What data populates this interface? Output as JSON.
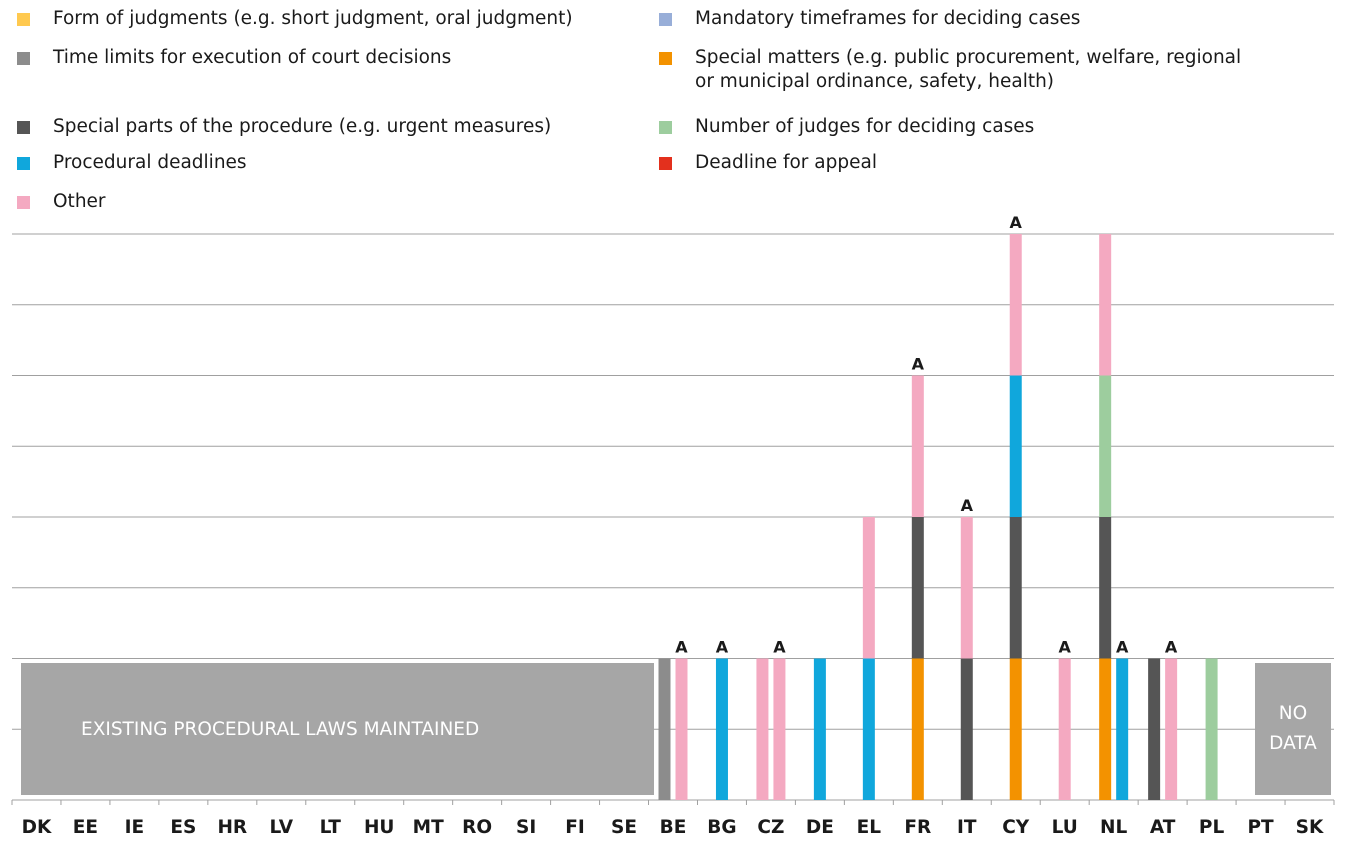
{
  "legend": [
    {
      "id": "form",
      "label": "Form of judgments (e.g. short judgment, oral judgment)",
      "color": "#ffc94f"
    },
    {
      "id": "timeframes",
      "label": "Mandatory timeframes for deciding cases",
      "color": "#98aed8"
    },
    {
      "id": "execution",
      "label": "Time limits for execution of court decisions",
      "color": "#8c8c8c"
    },
    {
      "id": "special_matters",
      "label": "Special matters (e.g. public procurement, welfare, regional\nor municipal ordinance, safety, health)",
      "color": "#f39200"
    },
    {
      "id": "special_parts",
      "label": "Special parts of the procedure (e.g. urgent measures)",
      "color": "#555555"
    },
    {
      "id": "judges",
      "label": "Number of judges for deciding cases",
      "color": "#9dcd9e"
    },
    {
      "id": "deadlines",
      "label": "Procedural deadlines",
      "color": "#10a7dc"
    },
    {
      "id": "appeal",
      "label": "Deadline for appeal",
      "color": "#e3301d"
    },
    {
      "id": "other",
      "label": "Other",
      "color": "#f4a9c1"
    }
  ],
  "overlays": {
    "maintained": "EXISTING PROCEDURAL LAWS MAINTAINED",
    "no_data": "NO\nDATA"
  },
  "chart_data": {
    "type": "bar",
    "stacked": true,
    "categories": [
      "DK",
      "EE",
      "IE",
      "ES",
      "HR",
      "LV",
      "LT",
      "HU",
      "MT",
      "RO",
      "SI",
      "FI",
      "SE",
      "BE",
      "BG",
      "CZ",
      "DE",
      "EL",
      "FR",
      "IT",
      "CY",
      "LU",
      "NL",
      "AT",
      "PL",
      "PT",
      "SK"
    ],
    "ylim": [
      0,
      8
    ],
    "grid": true,
    "flag_label": "A",
    "bars": [
      {
        "country": "BE",
        "stack": [
          {
            "type": "execution",
            "value": 2
          }
        ],
        "flag": false
      },
      {
        "country": "BE",
        "stack": [
          {
            "type": "other",
            "value": 2
          }
        ],
        "flag": true
      },
      {
        "country": "BG",
        "stack": [
          {
            "type": "deadlines",
            "value": 2
          }
        ],
        "flag": true
      },
      {
        "country": "CZ",
        "stack": [
          {
            "type": "other",
            "value": 2
          }
        ],
        "flag": false
      },
      {
        "country": "CZ",
        "stack": [
          {
            "type": "other",
            "value": 2
          }
        ],
        "flag": true
      },
      {
        "country": "DE",
        "stack": [
          {
            "type": "deadlines",
            "value": 2
          }
        ],
        "flag": false
      },
      {
        "country": "EL",
        "stack": [
          {
            "type": "deadlines",
            "value": 2
          },
          {
            "type": "other",
            "value": 2
          }
        ],
        "flag": false
      },
      {
        "country": "FR",
        "stack": [
          {
            "type": "special_matters",
            "value": 2
          },
          {
            "type": "special_parts",
            "value": 2
          },
          {
            "type": "other",
            "value": 2
          }
        ],
        "flag": true
      },
      {
        "country": "IT",
        "stack": [
          {
            "type": "special_parts",
            "value": 2
          },
          {
            "type": "other",
            "value": 2
          }
        ],
        "flag": true
      },
      {
        "country": "CY",
        "stack": [
          {
            "type": "special_matters",
            "value": 2
          },
          {
            "type": "special_parts",
            "value": 2
          },
          {
            "type": "deadlines",
            "value": 2
          },
          {
            "type": "other",
            "value": 2
          }
        ],
        "flag": true
      },
      {
        "country": "LU",
        "stack": [
          {
            "type": "other",
            "value": 2
          }
        ],
        "flag": true
      },
      {
        "country": "NL",
        "stack": [
          {
            "type": "special_matters",
            "value": 2
          },
          {
            "type": "special_parts",
            "value": 2
          },
          {
            "type": "judges",
            "value": 2
          },
          {
            "type": "other",
            "value": 2
          }
        ],
        "flag": false
      },
      {
        "country": "NL",
        "stack": [
          {
            "type": "deadlines",
            "value": 2
          }
        ],
        "flag": true
      },
      {
        "country": "AT",
        "stack": [
          {
            "type": "special_parts",
            "value": 2
          }
        ],
        "flag": false
      },
      {
        "country": "AT",
        "stack": [
          {
            "type": "other",
            "value": 2
          }
        ],
        "flag": true
      },
      {
        "country": "PL",
        "stack": [
          {
            "type": "judges",
            "value": 2
          }
        ],
        "flag": false
      }
    ]
  }
}
